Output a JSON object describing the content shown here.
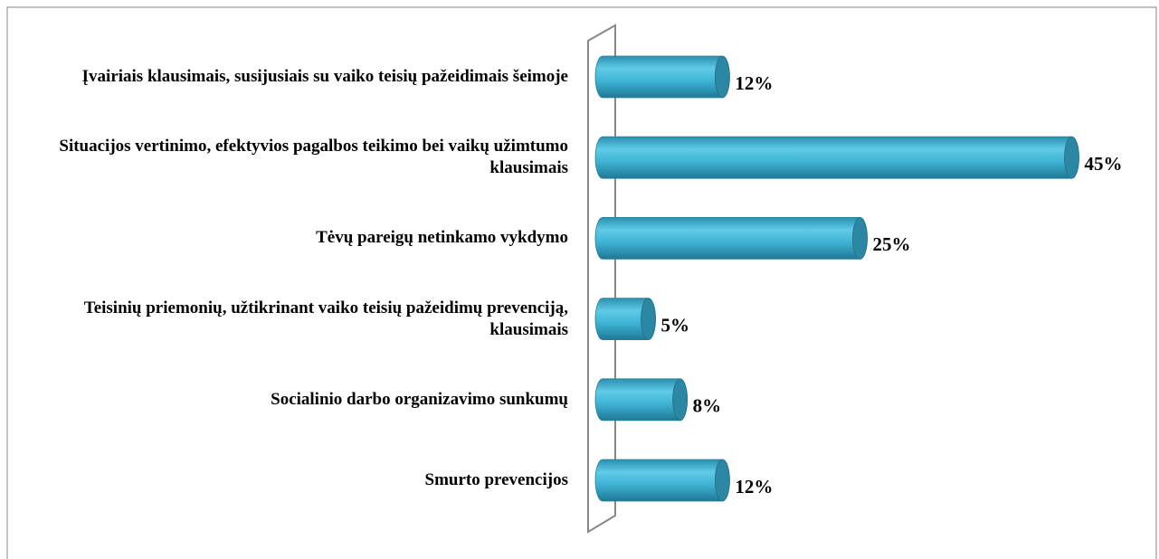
{
  "chart_data": {
    "type": "bar",
    "orientation": "horizontal",
    "categories": [
      "Įvairiais klausimais, susijusiais su vaiko teisių pažeidimais šeimoje",
      "Situacijos vertinimo, efektyvios pagalbos teikimo bei vaikų užimtumo klausimais",
      "Tėvų pareigų netinkamo vykdymo",
      "Teisinių priemonių, užtikrinant vaiko teisių pažeidimų prevenciją, klausimais",
      "Socialinio darbo organizavimo sunkumų",
      "Smurto prevencijos"
    ],
    "values": [
      12,
      45,
      25,
      5,
      8,
      12
    ],
    "value_labels": [
      "12%",
      "45%",
      "25%",
      "5%",
      "8%",
      "12%"
    ],
    "color": "#3fb3d4"
  }
}
